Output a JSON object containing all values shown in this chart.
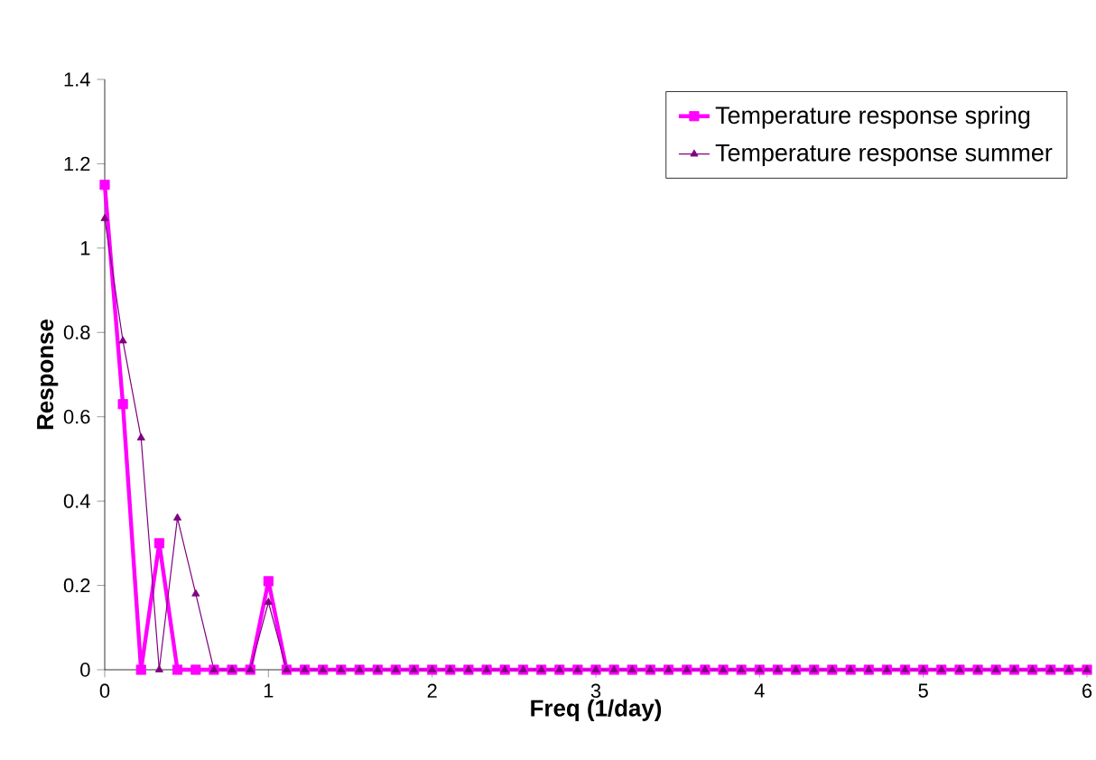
{
  "chart_data": {
    "type": "line",
    "xlabel": "Freq (1/day)",
    "ylabel": "Response",
    "x": [
      0,
      0.111,
      0.222,
      0.333,
      0.444,
      0.556,
      0.667,
      0.778,
      0.889,
      1,
      1.111,
      1.222,
      1.333,
      1.444,
      1.556,
      1.667,
      1.778,
      1.889,
      2,
      2.111,
      2.222,
      2.333,
      2.444,
      2.556,
      2.667,
      2.778,
      2.889,
      3,
      3.111,
      3.222,
      3.333,
      3.444,
      3.556,
      3.667,
      3.778,
      3.889,
      4,
      4.111,
      4.222,
      4.333,
      4.444,
      4.556,
      4.667,
      4.778,
      4.889,
      5,
      5.111,
      5.222,
      5.333,
      5.444,
      5.556,
      5.667,
      5.778,
      5.889,
      6
    ],
    "series": [
      {
        "name": "Temperature response spring",
        "color": "#ff00ff",
        "marker": "square",
        "values": [
          1.15,
          0.63,
          0,
          0.3,
          0,
          0,
          0,
          0,
          0,
          0.21,
          0,
          0,
          0,
          0,
          0,
          0,
          0,
          0,
          0,
          0,
          0,
          0,
          0,
          0,
          0,
          0,
          0,
          0,
          0,
          0,
          0,
          0,
          0,
          0,
          0,
          0,
          0,
          0,
          0,
          0,
          0,
          0,
          0,
          0,
          0,
          0,
          0,
          0,
          0,
          0,
          0,
          0,
          0,
          0,
          0
        ]
      },
      {
        "name": "Temperature response summer",
        "color": "#800080",
        "marker": "triangle",
        "values": [
          1.07,
          0.78,
          0.55,
          0,
          0.36,
          0.18,
          0,
          0,
          0,
          0.16,
          0,
          0,
          0,
          0,
          0,
          0,
          0,
          0,
          0,
          0,
          0,
          0,
          0,
          0,
          0,
          0,
          0,
          0,
          0,
          0,
          0,
          0,
          0,
          0,
          0,
          0,
          0,
          0,
          0,
          0,
          0,
          0,
          0,
          0,
          0,
          0,
          0,
          0,
          0,
          0,
          0,
          0,
          0,
          0,
          0
        ]
      }
    ],
    "xlim": [
      0,
      6
    ],
    "xticks": [
      0,
      1,
      2,
      3,
      4,
      5,
      6
    ],
    "ylim": [
      0,
      1.4
    ],
    "yticks": [
      0,
      0.2,
      0.4,
      0.6,
      0.8,
      1,
      1.2,
      1.4
    ],
    "grid": false,
    "legend": "top right",
    "line_style": "solid"
  }
}
